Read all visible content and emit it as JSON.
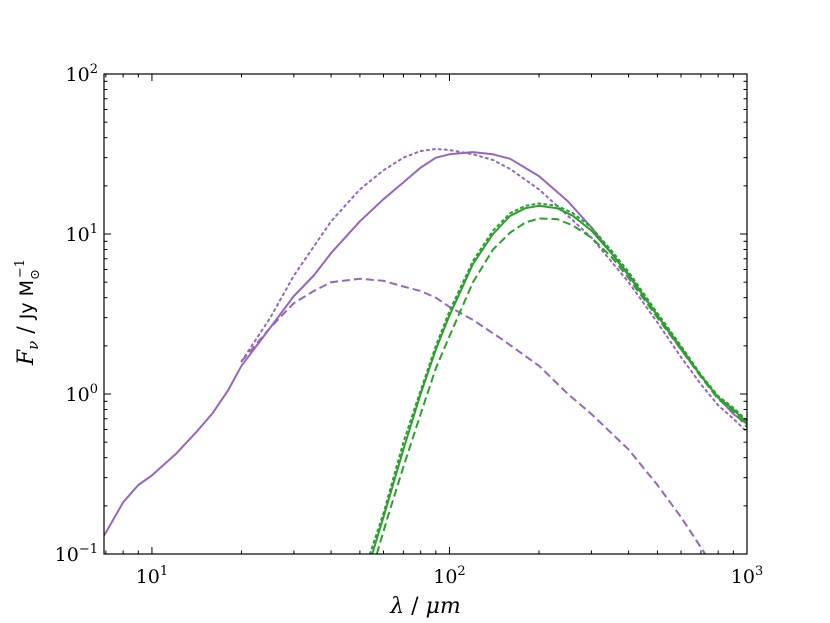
{
  "chart_data": {
    "type": "line",
    "xlabel": {
      "italic": "λ",
      "sep": " / ",
      "unit": "μm"
    },
    "ylabel": {
      "italic": "F",
      "sub": "ν",
      "sep": " / ",
      "unit": "Jy M",
      "unit_sub": "⊙",
      "unit_sup": "−1"
    },
    "x_scale": "log",
    "y_scale": "log",
    "xlim": [
      6.9,
      1000
    ],
    "ylim": [
      0.1,
      100
    ],
    "x_ticks": [
      {
        "value": 10,
        "base": "10",
        "exp": "1"
      },
      {
        "value": 100,
        "base": "10",
        "exp": "2"
      },
      {
        "value": 1000,
        "base": "10",
        "exp": "3"
      }
    ],
    "y_ticks": [
      {
        "value": 0.1,
        "base": "10",
        "exp": "−1"
      },
      {
        "value": 1,
        "base": "10",
        "exp": "0"
      },
      {
        "value": 10,
        "base": "10",
        "exp": "1"
      },
      {
        "value": 100,
        "base": "10",
        "exp": "2"
      }
    ],
    "grid": false,
    "colors": {
      "purple": "#9467bd",
      "green": "#2ca02c"
    },
    "series": [
      {
        "color": "#9467bd",
        "style": "solid",
        "points": [
          [
            6.9,
            0.13
          ],
          [
            8,
            0.21
          ],
          [
            9,
            0.27
          ],
          [
            10,
            0.31
          ],
          [
            12,
            0.42
          ],
          [
            14,
            0.57
          ],
          [
            16,
            0.76
          ],
          [
            18,
            1.05
          ],
          [
            20,
            1.5
          ],
          [
            25,
            2.6
          ],
          [
            30,
            4.1
          ],
          [
            35,
            5.5
          ],
          [
            40,
            7.6
          ],
          [
            50,
            12
          ],
          [
            60,
            16.5
          ],
          [
            70,
            21
          ],
          [
            80,
            26
          ],
          [
            90,
            30
          ],
          [
            100,
            31.5
          ],
          [
            120,
            32.5
          ],
          [
            140,
            31.5
          ],
          [
            160,
            29.5
          ],
          [
            200,
            23
          ],
          [
            250,
            16
          ],
          [
            300,
            11
          ],
          [
            400,
            5.5
          ],
          [
            500,
            3.1
          ],
          [
            600,
            1.9
          ],
          [
            700,
            1.3
          ],
          [
            800,
            0.95
          ],
          [
            900,
            0.75
          ],
          [
            1000,
            0.65
          ]
        ]
      },
      {
        "color": "#9467bd",
        "style": "dotted",
        "points": [
          [
            20,
            1.6
          ],
          [
            25,
            3
          ],
          [
            30,
            5.5
          ],
          [
            40,
            12
          ],
          [
            50,
            19
          ],
          [
            60,
            25
          ],
          [
            70,
            30
          ],
          [
            80,
            33
          ],
          [
            90,
            34
          ],
          [
            100,
            33.5
          ],
          [
            120,
            31.5
          ],
          [
            140,
            29
          ],
          [
            160,
            25.5
          ],
          [
            200,
            19
          ],
          [
            250,
            13
          ],
          [
            300,
            9.5
          ],
          [
            400,
            5
          ],
          [
            500,
            2.8
          ],
          [
            600,
            1.7
          ],
          [
            700,
            1.15
          ],
          [
            800,
            0.85
          ],
          [
            900,
            0.7
          ],
          [
            1000,
            0.58
          ]
        ]
      },
      {
        "color": "#9467bd",
        "style": "dashed",
        "points": [
          [
            20,
            1.6
          ],
          [
            25,
            2.6
          ],
          [
            30,
            3.7
          ],
          [
            35,
            4.4
          ],
          [
            40,
            5
          ],
          [
            50,
            5.25
          ],
          [
            60,
            5.1
          ],
          [
            70,
            4.7
          ],
          [
            80,
            4.4
          ],
          [
            90,
            4
          ],
          [
            100,
            3.5
          ],
          [
            120,
            2.9
          ],
          [
            150,
            2.2
          ],
          [
            200,
            1.5
          ],
          [
            250,
            1
          ],
          [
            300,
            0.75
          ],
          [
            400,
            0.45
          ],
          [
            500,
            0.27
          ],
          [
            600,
            0.17
          ],
          [
            700,
            0.11
          ],
          [
            750,
            0.09
          ]
        ]
      },
      {
        "color": "#2ca02c",
        "style": "solid",
        "points": [
          [
            55,
            0.1
          ],
          [
            60,
            0.17
          ],
          [
            70,
            0.45
          ],
          [
            80,
            1
          ],
          [
            90,
            1.9
          ],
          [
            100,
            3.1
          ],
          [
            120,
            6.5
          ],
          [
            140,
            10
          ],
          [
            160,
            13
          ],
          [
            180,
            14.5
          ],
          [
            200,
            15
          ],
          [
            230,
            14.5
          ],
          [
            260,
            13
          ],
          [
            300,
            10.5
          ],
          [
            350,
            7.6
          ],
          [
            400,
            5.6
          ],
          [
            500,
            3.1
          ],
          [
            600,
            1.95
          ],
          [
            700,
            1.3
          ],
          [
            800,
            0.95
          ],
          [
            900,
            0.8
          ],
          [
            1000,
            0.66
          ]
        ]
      },
      {
        "color": "#2ca02c",
        "style": "dotted",
        "points": [
          [
            54,
            0.1
          ],
          [
            60,
            0.18
          ],
          [
            70,
            0.5
          ],
          [
            80,
            1.05
          ],
          [
            90,
            2
          ],
          [
            100,
            3.3
          ],
          [
            120,
            6.8
          ],
          [
            140,
            10.5
          ],
          [
            160,
            13.5
          ],
          [
            180,
            15
          ],
          [
            200,
            15.5
          ],
          [
            230,
            15
          ],
          [
            260,
            13.5
          ],
          [
            300,
            11
          ],
          [
            350,
            7.9
          ],
          [
            400,
            5.8
          ],
          [
            500,
            3.2
          ],
          [
            600,
            2
          ],
          [
            700,
            1.32
          ],
          [
            800,
            0.97
          ],
          [
            900,
            0.82
          ],
          [
            1000,
            0.68
          ]
        ]
      },
      {
        "color": "#2ca02c",
        "style": "dashed",
        "points": [
          [
            57,
            0.1
          ],
          [
            62,
            0.17
          ],
          [
            70,
            0.35
          ],
          [
            80,
            0.75
          ],
          [
            90,
            1.45
          ],
          [
            100,
            2.3
          ],
          [
            120,
            5
          ],
          [
            140,
            8
          ],
          [
            160,
            10.2
          ],
          [
            180,
            11.8
          ],
          [
            200,
            12.5
          ],
          [
            230,
            12.4
          ],
          [
            260,
            11.3
          ],
          [
            300,
            9.5
          ],
          [
            350,
            7.2
          ],
          [
            400,
            5.3
          ],
          [
            500,
            3
          ],
          [
            600,
            1.9
          ],
          [
            700,
            1.28
          ],
          [
            800,
            0.93
          ],
          [
            900,
            0.78
          ],
          [
            1000,
            0.62
          ]
        ]
      }
    ]
  }
}
